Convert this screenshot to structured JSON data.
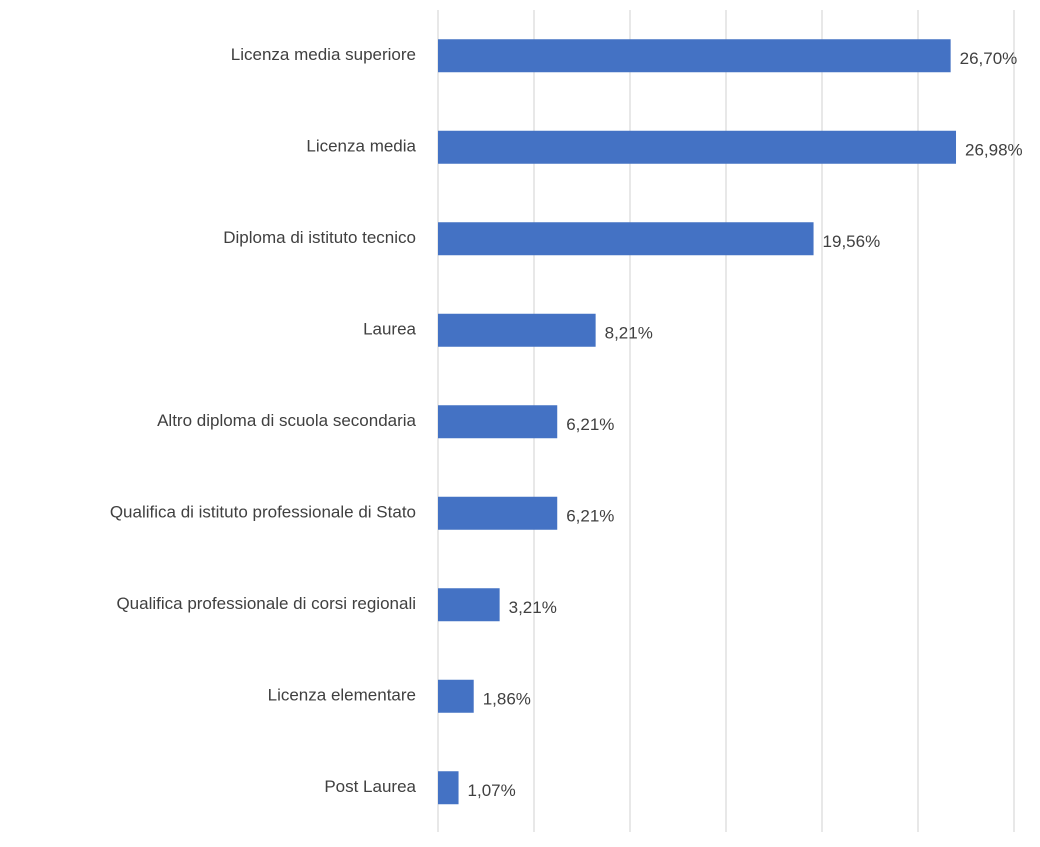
{
  "chart_data": {
    "type": "bar",
    "orientation": "horizontal",
    "categories": [
      "Licenza media superiore",
      "Licenza media",
      "Diploma di istituto tecnico",
      "Laurea",
      "Altro diploma di scuola secondaria",
      "Qualifica di istituto professionale di Stato",
      "Qualifica professionale di corsi regionali",
      "Licenza elementare",
      "Post Laurea"
    ],
    "values": [
      26.7,
      26.98,
      19.56,
      8.21,
      6.21,
      6.21,
      3.21,
      1.86,
      1.07
    ],
    "value_labels": [
      "26,70%",
      "26,98%",
      "19,56%",
      "8,21%",
      "6,21%",
      "6,21%",
      "3,21%",
      "1,86%",
      "1,07%"
    ],
    "title": "",
    "xlabel": "",
    "ylabel": "",
    "xlim": [
      0,
      30
    ],
    "grid": true,
    "x_axis_tick_labels_shown": false,
    "bar_color": "#4472c4",
    "gridline_color": "#d9d9d9",
    "text_color": "#404040"
  }
}
